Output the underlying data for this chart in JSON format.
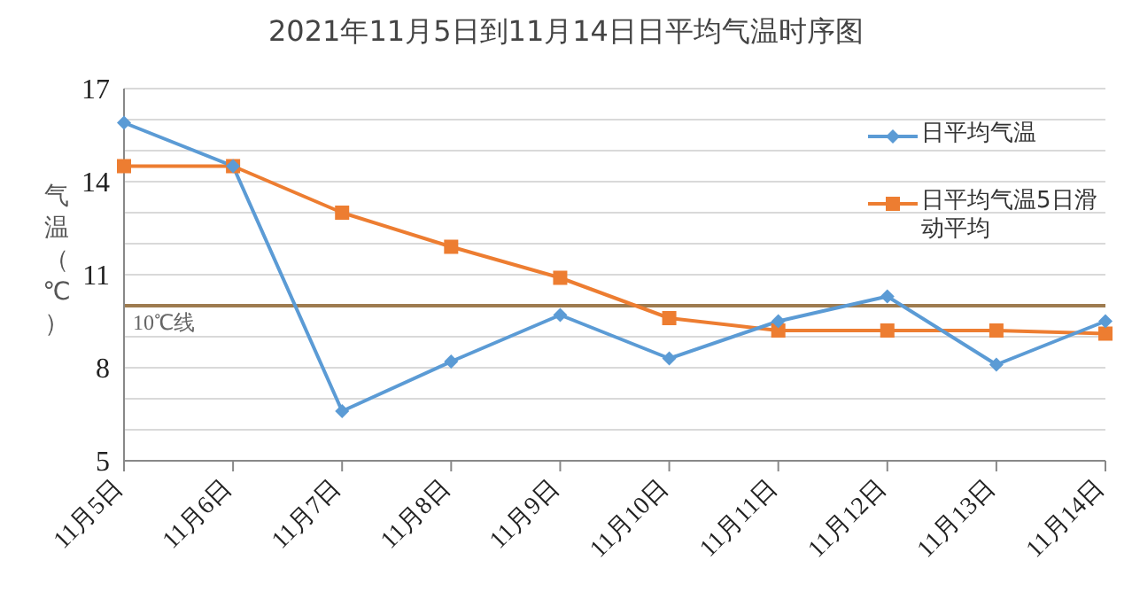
{
  "chart_data": {
    "type": "line",
    "title": "2021年11月5日到11月14日日平均气温时序图",
    "ylabel": "气温（℃）",
    "categories": [
      "11月5日",
      "11月6日",
      "11月7日",
      "11月8日",
      "11月9日",
      "11月10日",
      "11月11日",
      "11月12日",
      "11月13日",
      "11月14日"
    ],
    "series": [
      {
        "name": "日平均气温",
        "color": "#5b9bd5",
        "marker": "diamond",
        "values": [
          15.9,
          14.5,
          6.6,
          8.2,
          9.7,
          8.3,
          9.5,
          10.3,
          8.1,
          9.5
        ]
      },
      {
        "name": "日平均气温5日滑动平均",
        "color": "#ed7d31",
        "marker": "square",
        "values": [
          14.5,
          14.5,
          13.0,
          11.9,
          10.9,
          9.6,
          9.2,
          9.2,
          9.2,
          9.1
        ]
      }
    ],
    "ref_lines": [
      {
        "axis": "y",
        "value": 10,
        "label": "10℃线",
        "color": "#9e7b4f"
      }
    ],
    "ylim": [
      5,
      17
    ],
    "yticks": [
      5,
      {
        "value": 6,
        "label": null
      },
      {
        "value": 7,
        "label": null
      },
      8,
      {
        "value": 9,
        "label": null
      },
      {
        "value": 10,
        "label": null
      },
      11,
      {
        "value": 12,
        "label": null
      },
      {
        "value": 13,
        "label": null
      },
      14,
      {
        "value": 15,
        "label": null
      },
      {
        "value": 16,
        "label": null
      },
      17
    ],
    "grid": "y",
    "legend": "top right",
    "line_style": "solid"
  }
}
